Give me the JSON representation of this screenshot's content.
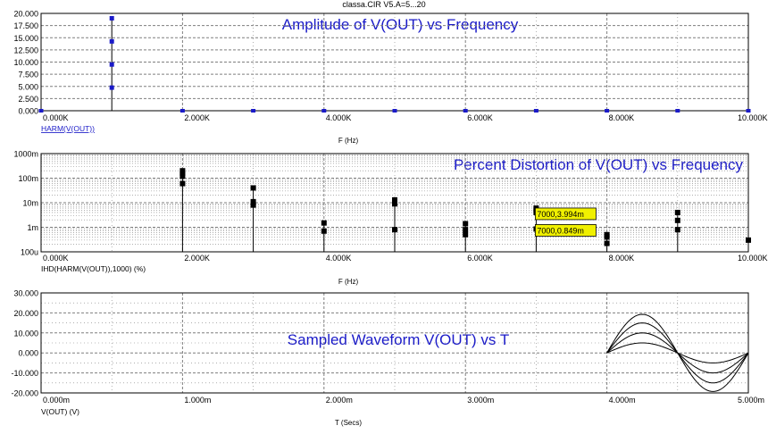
{
  "window_title": "classa.CIR V5.A=5...20",
  "colors": {
    "frame": "#000000",
    "grid": "#7f7f7f",
    "title": "#1a1ac8",
    "amp_marker": "#1a1ac8",
    "data_black": "#000000",
    "tag_fill": "#f0f000"
  },
  "chart_data": [
    {
      "type": "scatter",
      "title": "Amplitude of V(OUT) vs Frequency",
      "xlabel": "F (Hz)",
      "trace_label": "HARM(V(OUT))",
      "x_ticks": [
        "0.000K",
        "2.000K",
        "4.000K",
        "6.000K",
        "8.000K",
        "10.000K"
      ],
      "y_ticks": [
        "20.000",
        "17.500",
        "15.000",
        "12.500",
        "10.000",
        "7.500",
        "5.000",
        "2.500",
        "0.000"
      ],
      "xlim": [
        0,
        10000
      ],
      "ylim": [
        0,
        20
      ],
      "grid": true,
      "stems": [
        {
          "x": 1000,
          "values": [
            4.75,
            9.5,
            14.25,
            19.0
          ]
        }
      ],
      "baseline_points_x": [
        0,
        2000,
        3000,
        4000,
        5000,
        6000,
        7000,
        8000,
        9000,
        10000
      ]
    },
    {
      "type": "scatter",
      "title": "Percent Distortion of V(OUT) vs Frequency",
      "xlabel": "F (Hz)",
      "trace_label": "IHD(HARM(V(OUT)),1000) (%)",
      "x_ticks": [
        "0.000K",
        "2.000K",
        "4.000K",
        "6.000K",
        "8.000K",
        "10.000K"
      ],
      "y_ticks": [
        "1000m",
        "100m",
        "10m",
        "1m",
        "100u"
      ],
      "y_scale": "log",
      "xlim": [
        0,
        10000
      ],
      "ylim": [
        0.0001,
        1
      ],
      "grid": true,
      "stems": [
        {
          "x": 2000,
          "values": [
            0.06,
            0.12,
            0.16,
            0.2
          ]
        },
        {
          "x": 3000,
          "values": [
            0.008,
            0.011,
            0.04
          ]
        },
        {
          "x": 4000,
          "values": [
            0.0007,
            0.0015
          ]
        },
        {
          "x": 5000,
          "values": [
            0.0008,
            0.009,
            0.013
          ]
        },
        {
          "x": 6000,
          "values": [
            0.0005,
            0.0008,
            0.0014
          ]
        },
        {
          "x": 7000,
          "values": [
            0.00085,
            0.004,
            0.005,
            0.006
          ]
        },
        {
          "x": 8000,
          "values": [
            0.00022,
            0.0004,
            0.0005
          ]
        },
        {
          "x": 9000,
          "values": [
            0.0008,
            0.0019,
            0.004
          ]
        },
        {
          "x": 10000,
          "values": [
            0.0003
          ]
        }
      ],
      "annotations": [
        {
          "x": 7000,
          "y": 0.003994,
          "text": "7000,3.994m"
        },
        {
          "x": 7000,
          "y": 0.000849,
          "text": "7000,0.849m"
        }
      ]
    },
    {
      "type": "line",
      "title": "Sampled Waveform  V(OUT) vs T",
      "xlabel": "T (Secs)",
      "trace_label": "V(OUT) (V)",
      "x_ticks": [
        "0.000m",
        "1.000m",
        "2.000m",
        "3.000m",
        "4.000m",
        "5.000m"
      ],
      "y_ticks": [
        "30.000",
        "20.000",
        "10.000",
        "0.000",
        "-10.000",
        "-20.000"
      ],
      "xlim": [
        0,
        0.005
      ],
      "ylim": [
        -20,
        30
      ],
      "grid": true,
      "series": [
        {
          "t_start": 0.004,
          "t_end": 0.005,
          "period": 0.001,
          "amplitude": 5
        },
        {
          "t_start": 0.004,
          "t_end": 0.005,
          "period": 0.001,
          "amplitude": 10
        },
        {
          "t_start": 0.004,
          "t_end": 0.005,
          "period": 0.001,
          "amplitude": 15
        },
        {
          "t_start": 0.004,
          "t_end": 0.005,
          "period": 0.001,
          "amplitude": 19.3
        }
      ]
    }
  ]
}
